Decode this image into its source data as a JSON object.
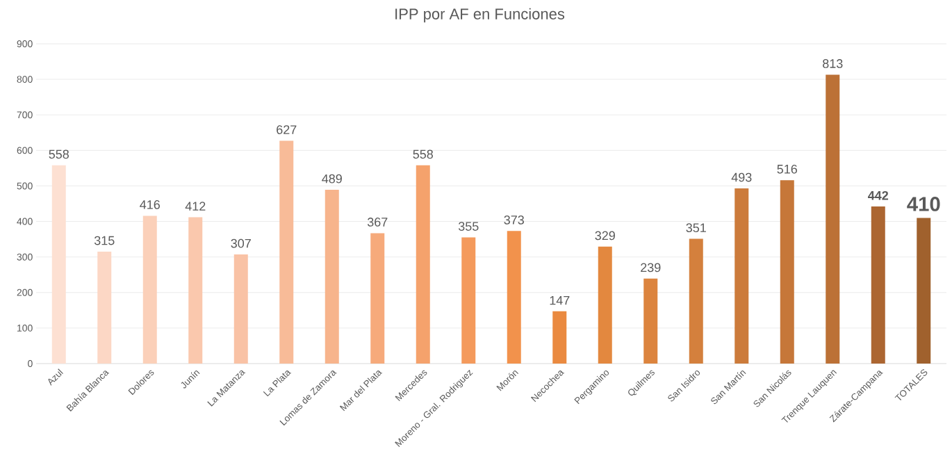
{
  "chart_data": {
    "type": "bar",
    "title": "IPP por AF en Funciones",
    "categories": [
      "Azul",
      "Bahía Blanca",
      "Dolores",
      "Junín",
      "La Matanza",
      "La Plata",
      "Lomas de Zamora",
      "Mar del Plata",
      "Mercedes",
      "Moreno - Gral. Rodriguez",
      "Morón",
      "Necochea",
      "Pergamino",
      "Quilmes",
      "San Isidro",
      "San Martín",
      "San Nicolás",
      "Trenque Lauquen",
      "Zárate-Campana",
      "TOTALES"
    ],
    "values": [
      558,
      315,
      416,
      412,
      307,
      627,
      489,
      367,
      558,
      355,
      373,
      147,
      329,
      239,
      351,
      493,
      516,
      813,
      442,
      410
    ],
    "colors": [
      "#fde0d2",
      "#fcd7c5",
      "#fbd0b9",
      "#fac8ad",
      "#f9c2a5",
      "#f8bb98",
      "#f7b48c",
      "#f6aa7b",
      "#f5a26c",
      "#f49a5c",
      "#f2924c",
      "#ea8a40",
      "#e3883f",
      "#dc843e",
      "#d4803d",
      "#cc7b3b",
      "#c67739",
      "#bc7136",
      "#ac6631",
      "#a0612d"
    ],
    "ylim": [
      0,
      900
    ],
    "yticks": [
      0,
      100,
      200,
      300,
      400,
      500,
      600,
      700,
      800,
      900
    ],
    "grid": "y",
    "data_labels": true
  }
}
